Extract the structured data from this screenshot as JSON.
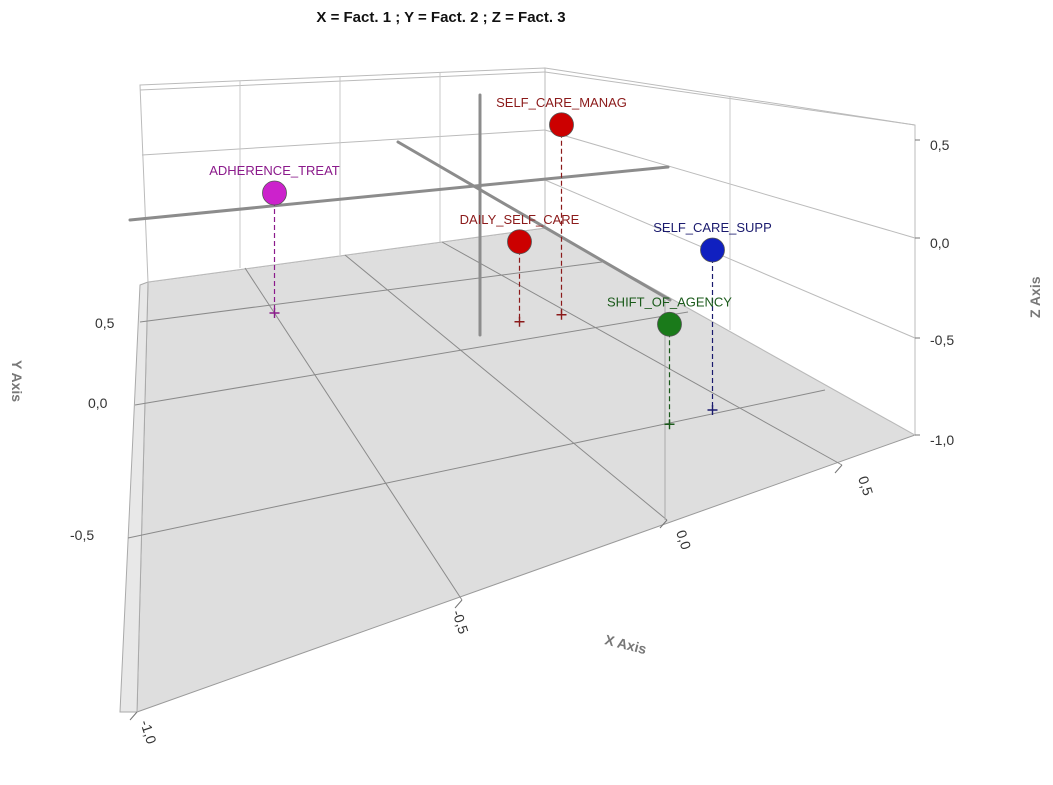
{
  "chart_data": {
    "type": "scatter",
    "title": "X = Fact. 1 ; Y = Fact. 2 ; Z = Fact. 3",
    "xlabel": "X Axis",
    "ylabel": "Y Axis",
    "zlabel": "Z Axis",
    "x_ticks": [
      "-1,0",
      "-0,5",
      "0,0",
      "0,5"
    ],
    "y_ticks": [
      "-0,5",
      "0,0",
      "0,5"
    ],
    "z_ticks": [
      "0,5",
      "0,0",
      "-0,5",
      "-1,0"
    ],
    "grid": true,
    "points": [
      {
        "name": "SELF_CARE_MANAG",
        "x": -0.4,
        "y": 0.75,
        "z": 0.6,
        "color": "#cc0000",
        "label_color": "#8b1a1a"
      },
      {
        "name": "SELF_CARE_SUPP",
        "x": 0.45,
        "y": 0.7,
        "z": 0.45,
        "color": "#1020c0",
        "label_color": "#1a1a6e"
      },
      {
        "name": "SHIFT_OF_AGENCY",
        "x": 0.5,
        "y": 0.45,
        "z": 0.15,
        "color": "#1a7a1a",
        "label_color": "#1a5a1a"
      },
      {
        "name": "ADHERENCE_TREAT",
        "x": -0.75,
        "y": -0.3,
        "z": 0.25,
        "color": "#cc22cc",
        "label_color": "#8b1a8b"
      },
      {
        "name": "DAILY_SELF_CARE",
        "x": -0.4,
        "y": 0.55,
        "z": 0.05,
        "color": "#cc0000",
        "label_color": "#8b1a1a"
      }
    ]
  }
}
